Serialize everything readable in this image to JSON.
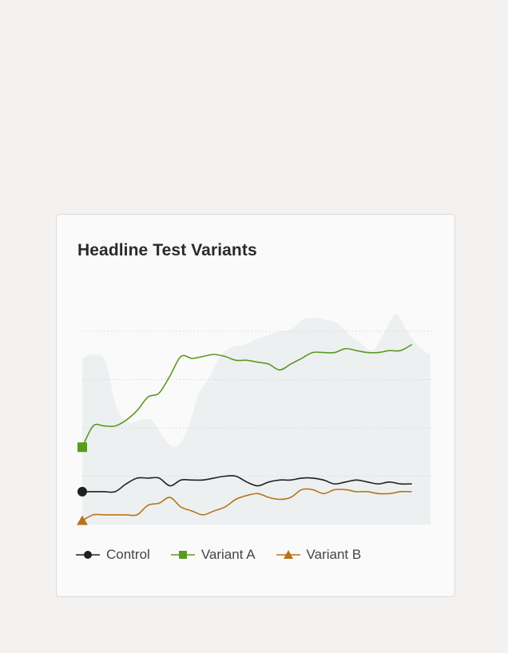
{
  "chart": {
    "title": "Headline Test Variants"
  },
  "legend": {
    "control": "Control",
    "variant_a": "Variant A",
    "variant_b": "Variant B"
  },
  "colors": {
    "control": "#1f1f1f",
    "variant_a": "#5a9a1e",
    "variant_b": "#b7741a",
    "background_area": "#e8ecee",
    "grid": "#d6d6d6"
  },
  "chart_data": {
    "type": "line",
    "title": "Headline Test Variants",
    "xlabel": "",
    "ylabel": "",
    "grid": true,
    "legend_position": "bottom",
    "ylim": [
      0,
      100
    ],
    "x": [
      0,
      1,
      2,
      3,
      4,
      5,
      6,
      7,
      8,
      9,
      10,
      11,
      12,
      13,
      14,
      15,
      16,
      17,
      18,
      19,
      20,
      21,
      22,
      23,
      24,
      25,
      26,
      27,
      28,
      29,
      30
    ],
    "series": [
      {
        "name": "Control",
        "marker": "circle",
        "values": [
          17,
          17,
          17,
          17,
          21,
          24,
          24,
          24,
          20,
          23,
          23,
          23,
          24,
          25,
          25,
          22,
          20,
          22,
          23,
          23,
          24,
          24,
          23,
          21,
          22,
          23,
          22,
          21,
          22,
          21,
          21
        ]
      },
      {
        "name": "Variant A",
        "marker": "square",
        "values": [
          40,
          51,
          51,
          51,
          54,
          59,
          66,
          68,
          77,
          87,
          86,
          87,
          88,
          87,
          85,
          85,
          84,
          83,
          80,
          83,
          86,
          89,
          89,
          89,
          91,
          90,
          89,
          89,
          90,
          90,
          93
        ]
      },
      {
        "name": "Variant B",
        "marker": "triangle",
        "values": [
          2,
          5,
          5,
          5,
          5,
          5,
          10,
          11,
          14,
          9,
          7,
          5,
          7,
          9,
          13,
          15,
          16,
          14,
          13,
          14,
          18,
          18,
          16,
          18,
          18,
          17,
          17,
          16,
          16,
          17,
          17
        ]
      }
    ],
    "background_area": [
      86,
      88,
      84,
      60,
      53,
      54,
      54,
      45,
      40,
      48,
      67,
      77,
      88,
      92,
      93,
      96,
      98,
      100,
      101,
      106,
      107,
      106,
      104,
      98,
      94,
      90,
      99,
      109,
      100,
      92,
      88
    ]
  }
}
